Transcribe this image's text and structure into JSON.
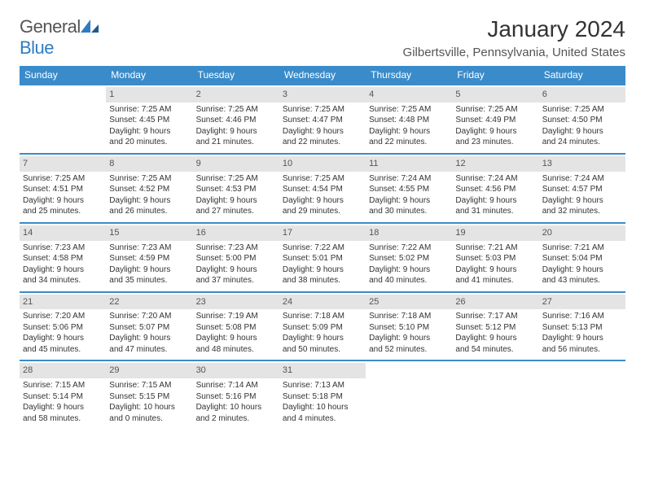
{
  "brand": {
    "name1": "General",
    "name2": "Blue"
  },
  "title": "January 2024",
  "location": "Gilbertsville, Pennsylvania, United States",
  "colors": {
    "header_bg": "#3a8bc9",
    "header_text": "#ffffff",
    "daynum_bg": "#e4e4e4",
    "rule": "#3a8bc9",
    "brand_blue": "#2e7cc2"
  },
  "day_headers": [
    "Sunday",
    "Monday",
    "Tuesday",
    "Wednesday",
    "Thursday",
    "Friday",
    "Saturday"
  ],
  "weeks": [
    [
      null,
      {
        "n": "1",
        "sr": "Sunrise: 7:25 AM",
        "ss": "Sunset: 4:45 PM",
        "d1": "Daylight: 9 hours",
        "d2": "and 20 minutes."
      },
      {
        "n": "2",
        "sr": "Sunrise: 7:25 AM",
        "ss": "Sunset: 4:46 PM",
        "d1": "Daylight: 9 hours",
        "d2": "and 21 minutes."
      },
      {
        "n": "3",
        "sr": "Sunrise: 7:25 AM",
        "ss": "Sunset: 4:47 PM",
        "d1": "Daylight: 9 hours",
        "d2": "and 22 minutes."
      },
      {
        "n": "4",
        "sr": "Sunrise: 7:25 AM",
        "ss": "Sunset: 4:48 PM",
        "d1": "Daylight: 9 hours",
        "d2": "and 22 minutes."
      },
      {
        "n": "5",
        "sr": "Sunrise: 7:25 AM",
        "ss": "Sunset: 4:49 PM",
        "d1": "Daylight: 9 hours",
        "d2": "and 23 minutes."
      },
      {
        "n": "6",
        "sr": "Sunrise: 7:25 AM",
        "ss": "Sunset: 4:50 PM",
        "d1": "Daylight: 9 hours",
        "d2": "and 24 minutes."
      }
    ],
    [
      {
        "n": "7",
        "sr": "Sunrise: 7:25 AM",
        "ss": "Sunset: 4:51 PM",
        "d1": "Daylight: 9 hours",
        "d2": "and 25 minutes."
      },
      {
        "n": "8",
        "sr": "Sunrise: 7:25 AM",
        "ss": "Sunset: 4:52 PM",
        "d1": "Daylight: 9 hours",
        "d2": "and 26 minutes."
      },
      {
        "n": "9",
        "sr": "Sunrise: 7:25 AM",
        "ss": "Sunset: 4:53 PM",
        "d1": "Daylight: 9 hours",
        "d2": "and 27 minutes."
      },
      {
        "n": "10",
        "sr": "Sunrise: 7:25 AM",
        "ss": "Sunset: 4:54 PM",
        "d1": "Daylight: 9 hours",
        "d2": "and 29 minutes."
      },
      {
        "n": "11",
        "sr": "Sunrise: 7:24 AM",
        "ss": "Sunset: 4:55 PM",
        "d1": "Daylight: 9 hours",
        "d2": "and 30 minutes."
      },
      {
        "n": "12",
        "sr": "Sunrise: 7:24 AM",
        "ss": "Sunset: 4:56 PM",
        "d1": "Daylight: 9 hours",
        "d2": "and 31 minutes."
      },
      {
        "n": "13",
        "sr": "Sunrise: 7:24 AM",
        "ss": "Sunset: 4:57 PM",
        "d1": "Daylight: 9 hours",
        "d2": "and 32 minutes."
      }
    ],
    [
      {
        "n": "14",
        "sr": "Sunrise: 7:23 AM",
        "ss": "Sunset: 4:58 PM",
        "d1": "Daylight: 9 hours",
        "d2": "and 34 minutes."
      },
      {
        "n": "15",
        "sr": "Sunrise: 7:23 AM",
        "ss": "Sunset: 4:59 PM",
        "d1": "Daylight: 9 hours",
        "d2": "and 35 minutes."
      },
      {
        "n": "16",
        "sr": "Sunrise: 7:23 AM",
        "ss": "Sunset: 5:00 PM",
        "d1": "Daylight: 9 hours",
        "d2": "and 37 minutes."
      },
      {
        "n": "17",
        "sr": "Sunrise: 7:22 AM",
        "ss": "Sunset: 5:01 PM",
        "d1": "Daylight: 9 hours",
        "d2": "and 38 minutes."
      },
      {
        "n": "18",
        "sr": "Sunrise: 7:22 AM",
        "ss": "Sunset: 5:02 PM",
        "d1": "Daylight: 9 hours",
        "d2": "and 40 minutes."
      },
      {
        "n": "19",
        "sr": "Sunrise: 7:21 AM",
        "ss": "Sunset: 5:03 PM",
        "d1": "Daylight: 9 hours",
        "d2": "and 41 minutes."
      },
      {
        "n": "20",
        "sr": "Sunrise: 7:21 AM",
        "ss": "Sunset: 5:04 PM",
        "d1": "Daylight: 9 hours",
        "d2": "and 43 minutes."
      }
    ],
    [
      {
        "n": "21",
        "sr": "Sunrise: 7:20 AM",
        "ss": "Sunset: 5:06 PM",
        "d1": "Daylight: 9 hours",
        "d2": "and 45 minutes."
      },
      {
        "n": "22",
        "sr": "Sunrise: 7:20 AM",
        "ss": "Sunset: 5:07 PM",
        "d1": "Daylight: 9 hours",
        "d2": "and 47 minutes."
      },
      {
        "n": "23",
        "sr": "Sunrise: 7:19 AM",
        "ss": "Sunset: 5:08 PM",
        "d1": "Daylight: 9 hours",
        "d2": "and 48 minutes."
      },
      {
        "n": "24",
        "sr": "Sunrise: 7:18 AM",
        "ss": "Sunset: 5:09 PM",
        "d1": "Daylight: 9 hours",
        "d2": "and 50 minutes."
      },
      {
        "n": "25",
        "sr": "Sunrise: 7:18 AM",
        "ss": "Sunset: 5:10 PM",
        "d1": "Daylight: 9 hours",
        "d2": "and 52 minutes."
      },
      {
        "n": "26",
        "sr": "Sunrise: 7:17 AM",
        "ss": "Sunset: 5:12 PM",
        "d1": "Daylight: 9 hours",
        "d2": "and 54 minutes."
      },
      {
        "n": "27",
        "sr": "Sunrise: 7:16 AM",
        "ss": "Sunset: 5:13 PM",
        "d1": "Daylight: 9 hours",
        "d2": "and 56 minutes."
      }
    ],
    [
      {
        "n": "28",
        "sr": "Sunrise: 7:15 AM",
        "ss": "Sunset: 5:14 PM",
        "d1": "Daylight: 9 hours",
        "d2": "and 58 minutes."
      },
      {
        "n": "29",
        "sr": "Sunrise: 7:15 AM",
        "ss": "Sunset: 5:15 PM",
        "d1": "Daylight: 10 hours",
        "d2": "and 0 minutes."
      },
      {
        "n": "30",
        "sr": "Sunrise: 7:14 AM",
        "ss": "Sunset: 5:16 PM",
        "d1": "Daylight: 10 hours",
        "d2": "and 2 minutes."
      },
      {
        "n": "31",
        "sr": "Sunrise: 7:13 AM",
        "ss": "Sunset: 5:18 PM",
        "d1": "Daylight: 10 hours",
        "d2": "and 4 minutes."
      },
      null,
      null,
      null
    ]
  ]
}
